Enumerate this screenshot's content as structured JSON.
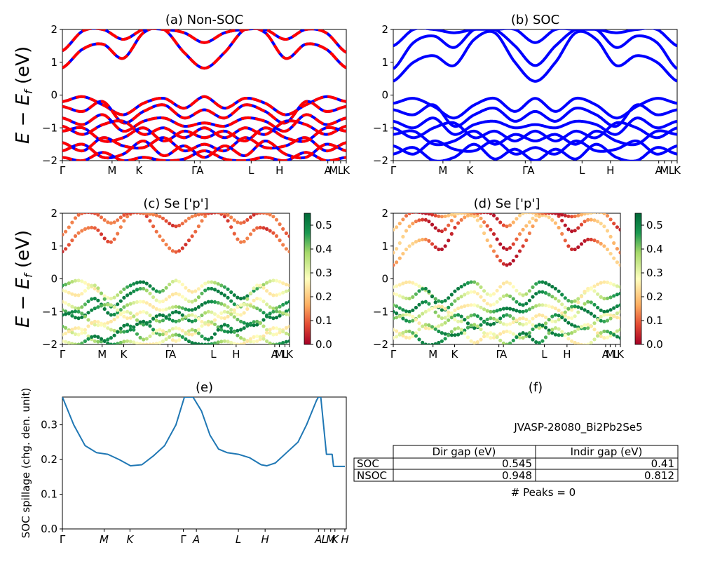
{
  "figure_label": "JVASP-28080_Bi2Pb2Se5",
  "colors": {
    "band_up": "#0000ff",
    "band_dn": "#ff0000",
    "spillage": "#1f77b4"
  },
  "chart_data": [
    {
      "type": "line",
      "title": "(a) Non-SOC",
      "ylabel": "E − E_f (eV)",
      "ylim": [
        -2,
        2
      ],
      "yticks": [
        "2",
        "1",
        "0",
        "−1",
        "−2"
      ],
      "kpath": [
        "Γ",
        "M",
        "K",
        "Γ",
        "A",
        "L",
        "H",
        "A",
        "M",
        "L",
        "K"
      ],
      "kpath_x": [
        0,
        0.175,
        0.27,
        0.465,
        0.485,
        0.665,
        0.765,
        0.935,
        0.955,
        0.98,
        1.0
      ],
      "series": [
        {
          "values": [
            0.83,
            1.4,
            1.55,
            1.12,
            1.9,
            2.0,
            1.3,
            0.82,
            1.3,
            2.0,
            1.9,
            1.12,
            1.55,
            1.4,
            0.83
          ]
        },
        {
          "values": [
            1.35,
            1.95,
            2.0,
            1.7,
            2.0,
            2.0,
            1.9,
            1.6,
            1.9,
            2.0,
            2.0,
            1.7,
            2.0,
            1.9,
            1.3
          ]
        },
        {
          "values": [
            -0.2,
            -0.05,
            -0.3,
            -0.6,
            -0.25,
            -0.1,
            -0.4,
            -0.05,
            -0.4,
            -0.1,
            -0.25,
            -0.6,
            -0.3,
            -0.05,
            -0.2
          ]
        },
        {
          "values": [
            -0.35,
            -0.5,
            -0.2,
            -0.85,
            -0.5,
            -0.3,
            -0.7,
            -0.45,
            -0.7,
            -0.3,
            -0.5,
            -0.85,
            -0.2,
            -0.5,
            -0.35
          ]
        },
        {
          "values": [
            -0.7,
            -0.9,
            -0.6,
            -1.1,
            -0.8,
            -0.7,
            -0.95,
            -0.85,
            -0.95,
            -0.7,
            -0.8,
            -1.1,
            -0.6,
            -0.9,
            -0.7
          ]
        },
        {
          "values": [
            -0.95,
            -1.2,
            -0.9,
            -0.8,
            -1.2,
            -1.0,
            -1.3,
            -1.0,
            -1.3,
            -1.0,
            -1.2,
            -0.8,
            -0.9,
            -1.2,
            -0.95
          ]
        },
        {
          "values": [
            -1.1,
            -1.0,
            -1.4,
            -1.3,
            -1.0,
            -1.4,
            -1.1,
            -1.3,
            -1.1,
            -1.4,
            -1.0,
            -1.3,
            -1.4,
            -1.0,
            -1.1
          ]
        },
        {
          "values": [
            -1.45,
            -1.7,
            -1.3,
            -1.55,
            -1.6,
            -1.3,
            -1.7,
            -1.5,
            -1.7,
            -1.3,
            -1.6,
            -1.55,
            -1.3,
            -1.7,
            -1.45
          ]
        },
        {
          "values": [
            -1.7,
            -1.5,
            -1.9,
            -1.8,
            -1.4,
            -1.85,
            -1.55,
            -1.9,
            -1.55,
            -1.85,
            -1.4,
            -1.8,
            -1.9,
            -1.5,
            -1.7
          ]
        },
        {
          "values": [
            -1.9,
            -2.0,
            -1.75,
            -2.0,
            -1.9,
            -2.0,
            -1.95,
            -1.7,
            -1.95,
            -2.0,
            -1.9,
            -2.0,
            -1.75,
            -2.0,
            -1.9
          ]
        }
      ]
    },
    {
      "type": "line",
      "title": "(b) SOC",
      "ylim": [
        -2,
        2
      ],
      "yticks": [
        "2",
        "1",
        "0",
        "−1",
        "−2"
      ],
      "kpath": [
        "Γ",
        "M",
        "K",
        "Γ",
        "A",
        "L",
        "H",
        "A",
        "M",
        "L",
        "K"
      ],
      "kpath_x": [
        0,
        0.175,
        0.27,
        0.465,
        0.485,
        0.665,
        0.765,
        0.935,
        0.955,
        0.98,
        1.0
      ],
      "series": [
        {
          "values": [
            0.42,
            1.0,
            1.2,
            0.9,
            1.7,
            1.9,
            1.0,
            0.42,
            1.0,
            1.9,
            1.7,
            0.9,
            1.2,
            1.0,
            0.42
          ]
        },
        {
          "values": [
            0.8,
            1.6,
            1.8,
            1.45,
            2.0,
            2.0,
            1.5,
            0.9,
            1.5,
            2.0,
            2.0,
            1.45,
            1.8,
            1.6,
            0.8
          ]
        },
        {
          "values": [
            1.5,
            2.0,
            2.0,
            1.9,
            2.0,
            2.0,
            2.0,
            1.6,
            2.0,
            2.0,
            2.0,
            1.9,
            2.0,
            2.0,
            1.5
          ]
        },
        {
          "values": [
            -0.25,
            -0.1,
            -0.35,
            -0.7,
            -0.3,
            -0.1,
            -0.5,
            -0.1,
            -0.5,
            -0.1,
            -0.3,
            -0.7,
            -0.35,
            -0.1,
            -0.25
          ]
        },
        {
          "values": [
            -0.45,
            -0.6,
            -0.3,
            -0.95,
            -0.6,
            -0.4,
            -0.8,
            -0.5,
            -0.8,
            -0.4,
            -0.6,
            -0.95,
            -0.3,
            -0.6,
            -0.45
          ]
        },
        {
          "values": [
            -0.8,
            -1.0,
            -0.7,
            -1.2,
            -0.9,
            -0.8,
            -1.0,
            -0.9,
            -1.0,
            -0.8,
            -0.9,
            -1.2,
            -0.7,
            -1.0,
            -0.8
          ]
        },
        {
          "values": [
            -1.0,
            -1.3,
            -1.0,
            -0.85,
            -1.3,
            -1.1,
            -1.4,
            -1.1,
            -1.4,
            -1.1,
            -1.3,
            -0.85,
            -1.0,
            -1.3,
            -1.0
          ]
        },
        {
          "values": [
            -1.2,
            -1.1,
            -1.5,
            -1.4,
            -1.1,
            -1.5,
            -1.2,
            -1.4,
            -1.2,
            -1.5,
            -1.1,
            -1.4,
            -1.5,
            -1.1,
            -1.2
          ]
        },
        {
          "values": [
            -1.55,
            -1.8,
            -1.4,
            -1.65,
            -1.7,
            -1.4,
            -1.8,
            -1.6,
            -1.8,
            -1.4,
            -1.7,
            -1.65,
            -1.4,
            -1.8,
            -1.55
          ]
        },
        {
          "values": [
            -1.8,
            -1.6,
            -2.0,
            -1.9,
            -1.5,
            -1.95,
            -1.65,
            -2.0,
            -1.65,
            -1.95,
            -1.5,
            -1.9,
            -2.0,
            -1.6,
            -1.8
          ]
        }
      ]
    },
    {
      "type": "scatter",
      "title": "(c)  Se ['p']",
      "ylabel": "E − E_f (eV)",
      "ylim": [
        -2,
        2
      ],
      "yticks": [
        "2",
        "1",
        "0",
        "−1",
        "−2"
      ],
      "kpath": [
        "Γ",
        "M",
        "K",
        "Γ",
        "A",
        "L",
        "H",
        "A",
        "M",
        "L",
        "K"
      ],
      "kpath_x": [
        0,
        0.175,
        0.27,
        0.465,
        0.485,
        0.665,
        0.765,
        0.935,
        0.955,
        0.98,
        1.0
      ],
      "colorbar": {
        "ticks": [
          "0.5",
          "0.4",
          "0.3",
          "0.2",
          "0.1",
          "0.0"
        ],
        "range": [
          0.0,
          0.55
        ]
      }
    },
    {
      "type": "scatter",
      "title": "(d) Se ['p']",
      "ylim": [
        -2,
        2
      ],
      "yticks": [
        "2",
        "1",
        "0",
        "−1",
        "−2"
      ],
      "kpath": [
        "Γ",
        "M",
        "K",
        "Γ",
        "A",
        "L",
        "H",
        "A",
        "M",
        "L",
        "K"
      ],
      "kpath_x": [
        0,
        0.175,
        0.27,
        0.465,
        0.485,
        0.665,
        0.765,
        0.935,
        0.955,
        0.98,
        1.0
      ],
      "colorbar": {
        "ticks": [
          "0.5",
          "0.4",
          "0.3",
          "0.2",
          "0.1",
          "0.0"
        ],
        "range": [
          0.0,
          0.55
        ]
      }
    },
    {
      "type": "line",
      "title": "(e)",
      "ylabel": "SOC spillage (chg. den. unit)",
      "ylim": [
        0,
        0.38
      ],
      "yticks": [
        "0.0",
        "0.1",
        "0.2",
        "0.3"
      ],
      "kpath": [
        "Γ",
        "M",
        "K",
        "Γ",
        "A",
        "L",
        "H",
        "A",
        "L",
        "M",
        "K",
        "H"
      ],
      "kpath_x": [
        0,
        0.147,
        0.238,
        0.426,
        0.472,
        0.62,
        0.714,
        0.902,
        0.923,
        0.945,
        0.96,
        0.995
      ],
      "x": [
        0,
        0.04,
        0.08,
        0.12,
        0.16,
        0.2,
        0.24,
        0.28,
        0.32,
        0.36,
        0.4,
        0.43,
        0.46,
        0.49,
        0.52,
        0.55,
        0.58,
        0.62,
        0.66,
        0.7,
        0.72,
        0.75,
        0.79,
        0.83,
        0.86,
        0.88,
        0.895,
        0.902,
        0.91,
        0.93,
        0.95,
        0.955,
        0.995
      ],
      "values": [
        0.38,
        0.3,
        0.24,
        0.22,
        0.215,
        0.2,
        0.182,
        0.185,
        0.21,
        0.24,
        0.3,
        0.38,
        0.38,
        0.34,
        0.27,
        0.23,
        0.22,
        0.215,
        0.205,
        0.185,
        0.182,
        0.19,
        0.22,
        0.25,
        0.3,
        0.34,
        0.37,
        0.38,
        0.38,
        0.215,
        0.215,
        0.18,
        0.18
      ]
    }
  ],
  "table": {
    "title": "(f)",
    "header": [
      "",
      "Dir gap (eV)",
      "Indir gap (eV)"
    ],
    "rows": [
      [
        "SOC",
        "0.545",
        "0.41"
      ],
      [
        "NSOC",
        "0.948",
        "0.812"
      ]
    ],
    "footer": "# Peaks = 0"
  }
}
